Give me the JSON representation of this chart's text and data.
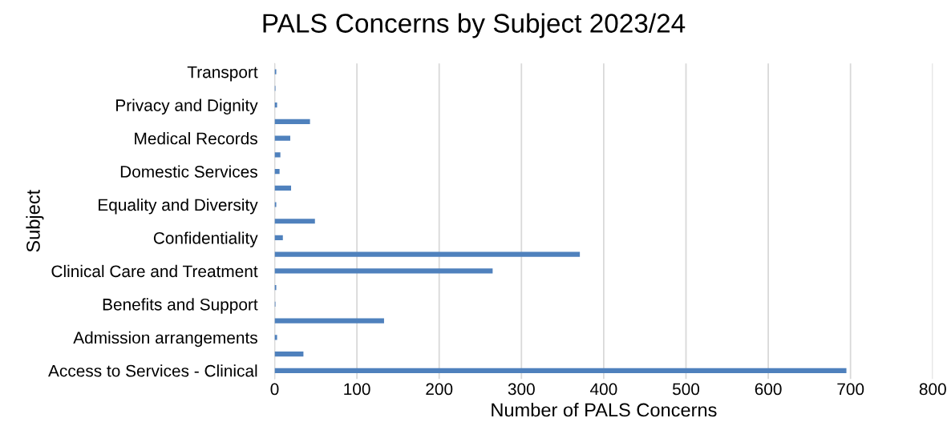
{
  "chart_data": {
    "type": "bar",
    "orientation": "horizontal",
    "title": "PALS Concerns by Subject 2023/24",
    "xlabel": "Number of PALS Concerns",
    "ylabel": "Subject",
    "categories": [
      "Transport",
      null,
      "Privacy and Dignity",
      null,
      "Medical Records",
      null,
      "Domestic Services",
      null,
      "Equality and Diversity",
      null,
      "Confidentiality",
      null,
      "Clinical Care and Treatment",
      null,
      "Benefits and Support",
      null,
      "Admission arrangements",
      null,
      "Access to Services - Clinical"
    ],
    "values": [
      2,
      1,
      3,
      43,
      19,
      7,
      6,
      20,
      2,
      49,
      10,
      371,
      265,
      2,
      1,
      133,
      3,
      35,
      695
    ],
    "color": "#4f81bd",
    "xlim": [
      0,
      800
    ],
    "xticks": [
      0,
      100,
      200,
      300,
      400,
      500,
      600,
      700,
      800
    ],
    "grid": "x",
    "legend": false
  }
}
